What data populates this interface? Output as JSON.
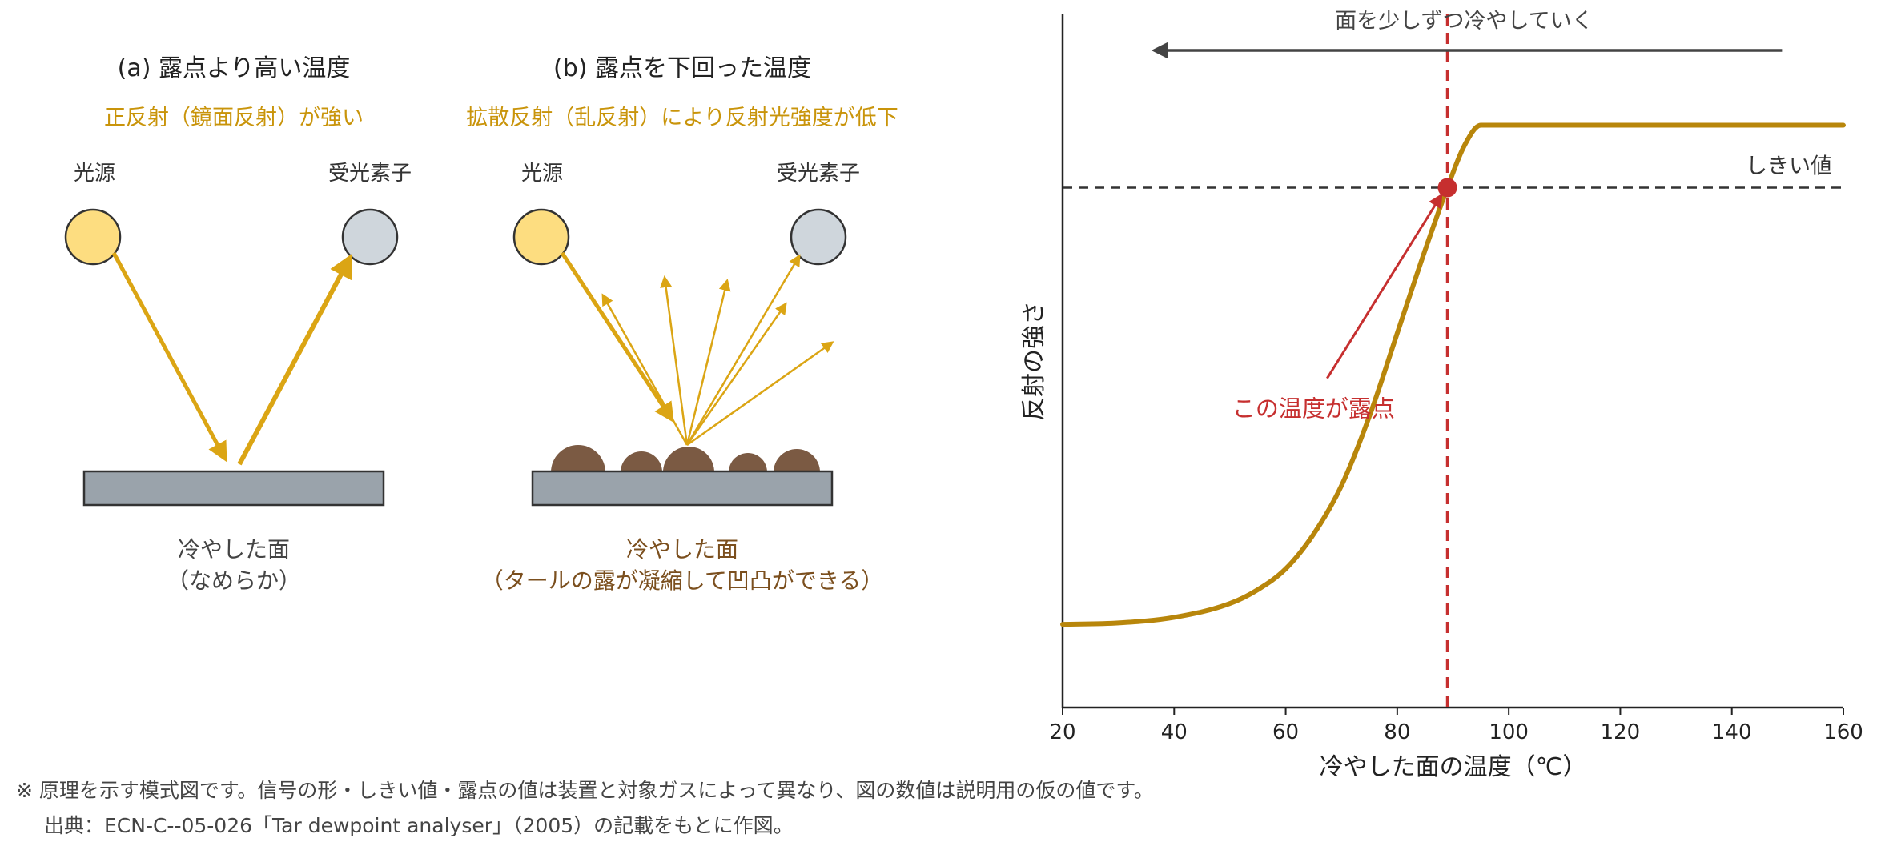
{
  "panel_a": {
    "title": "(a) 露点より高い温度",
    "subtitle": "正反射（鏡面反射）が強い",
    "light_source_label": "光源",
    "receiver_label": "受光素子",
    "surface_label_line1": "冷やした面",
    "surface_label_line2": "（なめらか）"
  },
  "panel_b": {
    "title": "(b) 露点を下回った温度",
    "subtitle": "拡散反射（乱反射）により反射光強度が低下",
    "light_source_label": "光源",
    "receiver_label": "受光素子",
    "surface_label_line1": "冷やした面",
    "surface_label_line2": "（タールの露が凝縮して凹凸ができる）"
  },
  "chart_data": {
    "type": "line",
    "xlabel": "冷やした面の温度（℃）",
    "ylabel": "反射の強さ",
    "xlim": [
      20,
      160
    ],
    "ylim": [
      0,
      1
    ],
    "x_ticks": [
      "20",
      "40",
      "60",
      "80",
      "100",
      "120",
      "140",
      "160"
    ],
    "series": [
      {
        "x": [
          20,
          30,
          40,
          50,
          55,
          60,
          65,
          70,
          75,
          80,
          85,
          89,
          92,
          95,
          100,
          120,
          140,
          160
        ],
        "y": [
          0.12,
          0.122,
          0.13,
          0.15,
          0.17,
          0.2,
          0.25,
          0.32,
          0.42,
          0.54,
          0.66,
          0.75,
          0.81,
          0.84,
          0.84,
          0.84,
          0.84,
          0.84
        ]
      }
    ],
    "threshold": {
      "y": 0.75,
      "label": "しきい値"
    },
    "dewpoint": {
      "x": 89,
      "label": "この温度が露点"
    },
    "cooling_arrow_label": "面を少しずつ冷やしていく",
    "colors": {
      "curve": "#b8860b",
      "dewpoint": "#c62f2f",
      "threshold": "#333333",
      "arrow": "#444444"
    }
  },
  "footnote": {
    "line1": "※ 原理を示す模式図です。信号の形・しきい値・露点の値は装置と対象ガスによって異なり、図の数値は説明用の仮の値です。",
    "line2": "出典：ECN-C--05-026「Tar dewpoint analyser」（2005）の記載をもとに作図。"
  }
}
